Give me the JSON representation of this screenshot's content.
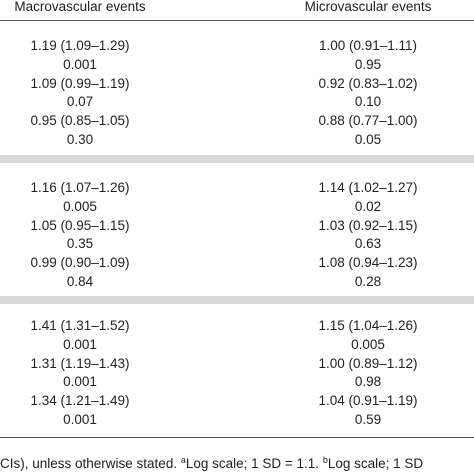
{
  "header": {
    "columns": [
      "Macrovascular events",
      "Microvascular events"
    ]
  },
  "table": {
    "groups": [
      {
        "rows": [
          [
            "1.19 (1.09–1.29)",
            "1.00 (0.91–1.11)"
          ],
          [
            "0.001",
            "0.95"
          ],
          [
            "1.09 (0.99–1.19)",
            "0.92 (0.83–1.02)"
          ],
          [
            "0.07",
            "0.10"
          ],
          [
            "0.95 (0.85–1.05)",
            "0.88 (0.77–1.00)"
          ],
          [
            "0.30",
            "0.05"
          ]
        ]
      },
      {
        "rows": [
          [
            "1.16 (1.07–1.26)",
            "1.14 (1.02–1.27)"
          ],
          [
            "0.005",
            "0.02"
          ],
          [
            "1.05 (0.95–1.15)",
            "1.03 (0.92–1.15)"
          ],
          [
            "0.35",
            "0.63"
          ],
          [
            "0.99 (0.90–1.09)",
            "1.08 (0.94–1.23)"
          ],
          [
            "0.84",
            "0.28"
          ]
        ]
      },
      {
        "rows": [
          [
            "1.41 (1.31–1.52)",
            "1.15 (1.04–1.26)"
          ],
          [
            "0.001",
            "0.005"
          ],
          [
            "1.31 (1.19–1.43)",
            "1.00 (0.89–1.12)"
          ],
          [
            "0.001",
            "0.98"
          ],
          [
            "1.34 (1.21–1.49)",
            "1.04 (0.91–1.19)"
          ],
          [
            "0.001",
            "0.59"
          ]
        ]
      }
    ]
  },
  "footnote": [
    "CIs), unless otherwise stated. ",
    "a",
    "Log scale; 1 SD = 1.1. ",
    "b",
    "Log scale; 1 SD"
  ]
}
